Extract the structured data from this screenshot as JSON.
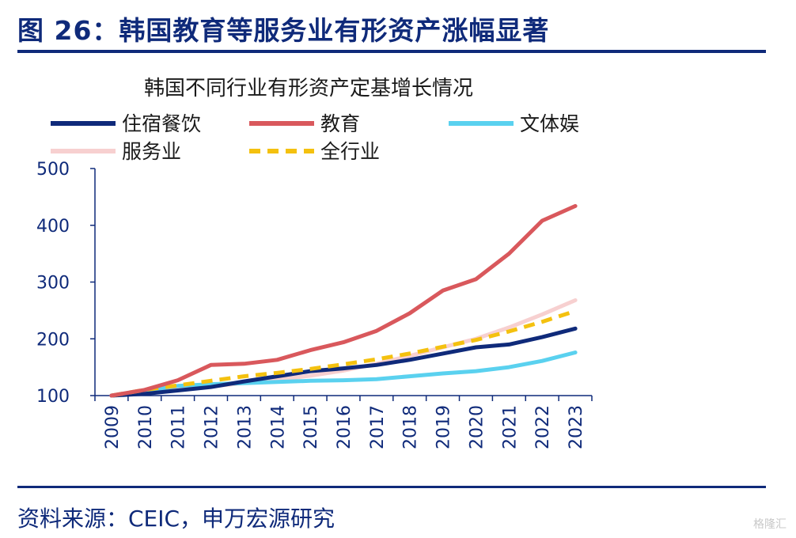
{
  "figure_title": "图 26：韩国教育等服务业有形资产涨幅显著",
  "source": "资料来源：CEIC，申万宏源研究",
  "watermark": "格隆汇",
  "chart_data": {
    "type": "line",
    "title": "韩国不同行业有形资产定基增长情况",
    "xlabel": "",
    "ylabel": "",
    "x": [
      "2009",
      "2010",
      "2011",
      "2012",
      "2013",
      "2014",
      "2015",
      "2016",
      "2017",
      "2018",
      "2019",
      "2020",
      "2021",
      "2022",
      "2023"
    ],
    "ylim": [
      100,
      500
    ],
    "yticks": [
      100,
      200,
      300,
      400,
      500
    ],
    "grid": false,
    "legend_position": "top",
    "series": [
      {
        "name": "住宿餐饮",
        "color": "#0f2a7a",
        "dash": false,
        "values": [
          100,
          103,
          109,
          115,
          125,
          134,
          143,
          148,
          154,
          163,
          174,
          185,
          190,
          203,
          218
        ]
      },
      {
        "name": "教育",
        "color": "#d9585c",
        "dash": false,
        "values": [
          100,
          110,
          127,
          154,
          156,
          163,
          180,
          194,
          214,
          245,
          285,
          305,
          350,
          408,
          434
        ]
      },
      {
        "name": "文体娱",
        "color": "#5ad1ef",
        "dash": false,
        "values": [
          100,
          108,
          117,
          120,
          122,
          124,
          126,
          127,
          129,
          134,
          139,
          143,
          150,
          161,
          176
        ]
      },
      {
        "name": "服务业",
        "color": "#f7d0d0",
        "dash": false,
        "values": [
          100,
          106,
          110,
          116,
          122,
          128,
          135,
          144,
          156,
          170,
          185,
          200,
          220,
          243,
          268
        ]
      },
      {
        "name": "全行业",
        "color": "#f4c10f",
        "dash": true,
        "values": [
          100,
          110,
          118,
          126,
          134,
          140,
          147,
          155,
          164,
          174,
          186,
          198,
          213,
          230,
          249
        ]
      }
    ]
  }
}
